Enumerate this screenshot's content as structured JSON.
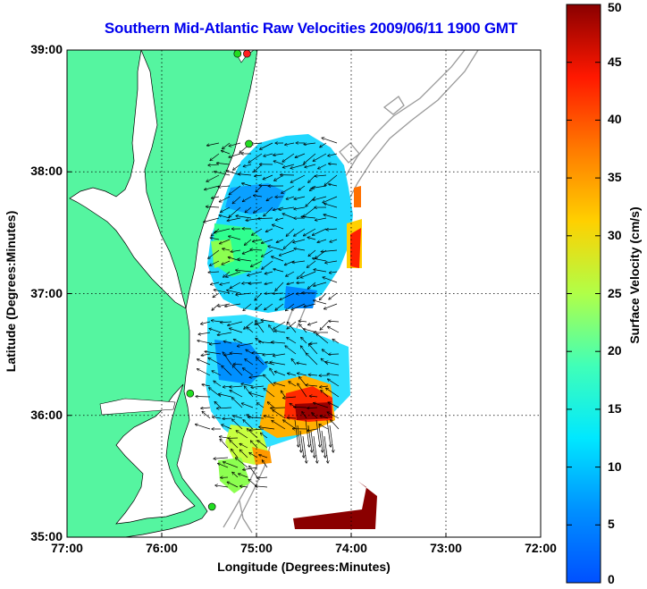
{
  "title": "Southern Mid-Atlantic Raw Velocities 2009/06/11 1900 GMT",
  "xaxis": {
    "label": "Longitude (Degrees:Minutes)",
    "ticks": [
      {
        "value": -77,
        "label": "77:00"
      },
      {
        "value": -76,
        "label": "76:00"
      },
      {
        "value": -75,
        "label": "75:00"
      },
      {
        "value": -74,
        "label": "74:00"
      },
      {
        "value": -73,
        "label": "73:00"
      },
      {
        "value": -72,
        "label": "72:00"
      }
    ],
    "range": [
      -77,
      -72
    ]
  },
  "yaxis": {
    "label": "Latitude (Degrees:Minutes)",
    "ticks": [
      {
        "value": 35,
        "label": "35:00"
      },
      {
        "value": 36,
        "label": "36:00"
      },
      {
        "value": 37,
        "label": "37:00"
      },
      {
        "value": 38,
        "label": "38:00"
      },
      {
        "value": 39,
        "label": "39:00"
      }
    ],
    "range": [
      35,
      39
    ]
  },
  "colorbar": {
    "label": "Surface Velocity (cm/s)",
    "range": [
      0,
      50
    ],
    "ticks": [
      "0",
      "5",
      "10",
      "15",
      "20",
      "25",
      "30",
      "35",
      "40",
      "45",
      "50"
    ]
  },
  "colors": {
    "land": "#55f5a0",
    "coast": "#000000",
    "bathymetry": "#9a9a9a",
    "title": "#0000ee"
  },
  "stations": [
    {
      "name": "station-1",
      "lon": -75.1,
      "lat": 38.97,
      "color": "#ff2020"
    },
    {
      "name": "station-2",
      "lon": -75.2,
      "lat": 38.97,
      "color": "#22dd22"
    },
    {
      "name": "station-3",
      "lon": -75.08,
      "lat": 38.23,
      "color": "#22dd22"
    },
    {
      "name": "station-4",
      "lon": -75.7,
      "lat": 36.18,
      "color": "#22dd22"
    },
    {
      "name": "station-5",
      "lon": -75.47,
      "lat": 35.25,
      "color": "#22dd22"
    }
  ]
}
